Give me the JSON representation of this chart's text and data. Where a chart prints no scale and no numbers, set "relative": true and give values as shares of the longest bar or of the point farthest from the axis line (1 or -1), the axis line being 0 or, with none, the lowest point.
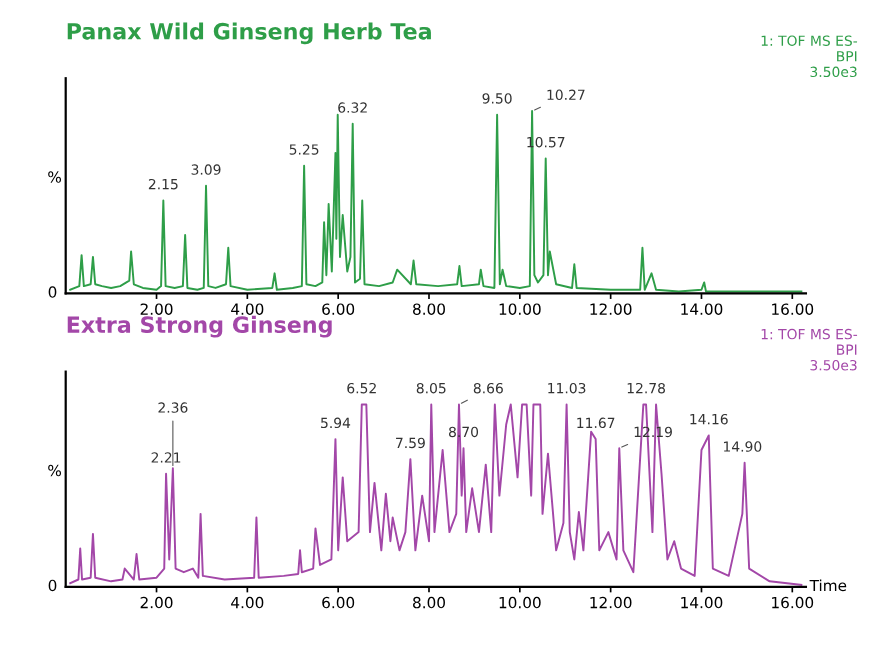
{
  "chart_data": [
    {
      "type": "line",
      "title": "Panax Wild Ginseng Herb Tea",
      "ylabel": "%",
      "relative": true,
      "xlim": [
        0,
        16.3
      ],
      "xticks": [
        {
          "value": 2,
          "label": "2.00"
        },
        {
          "value": 4,
          "label": "4.00"
        },
        {
          "value": 6,
          "label": "6.00"
        },
        {
          "value": 8,
          "label": "8.00"
        },
        {
          "value": 10,
          "label": "10.00"
        },
        {
          "value": 12,
          "label": "12.00"
        },
        {
          "value": 14,
          "label": "14.00"
        },
        {
          "value": 16,
          "label": "16.00"
        }
      ],
      "series": [
        {
          "color": "#2e9e48",
          "x": [
            0.1,
            0.3,
            0.35,
            0.4,
            0.55,
            0.6,
            0.65,
            0.8,
            1.0,
            1.2,
            1.4,
            1.44,
            1.5,
            1.7,
            2.0,
            2.1,
            2.15,
            2.2,
            2.4,
            2.58,
            2.63,
            2.68,
            2.9,
            3.04,
            3.09,
            3.14,
            3.3,
            3.53,
            3.58,
            3.63,
            4.0,
            4.55,
            4.6,
            4.65,
            5.0,
            5.2,
            5.25,
            5.3,
            5.5,
            5.65,
            5.69,
            5.74,
            5.79,
            5.86,
            5.94,
            5.96,
            5.99,
            6.04,
            6.1,
            6.2,
            6.27,
            6.32,
            6.37,
            6.48,
            6.53,
            6.58,
            6.9,
            7.2,
            7.3,
            7.6,
            7.66,
            7.72,
            8.2,
            8.62,
            8.67,
            8.72,
            9.1,
            9.14,
            9.2,
            9.44,
            9.5,
            9.56,
            9.62,
            9.7,
            10.0,
            10.22,
            10.27,
            10.32,
            10.4,
            10.52,
            10.57,
            10.62,
            10.66,
            10.8,
            11.15,
            11.2,
            11.25,
            12.0,
            12.65,
            12.7,
            12.75,
            12.9,
            13.0,
            13.5,
            14.0,
            14.06,
            14.1,
            15.0,
            16.2
          ],
          "values": [
            0.02,
            0.04,
            0.21,
            0.04,
            0.05,
            0.2,
            0.05,
            0.04,
            0.03,
            0.04,
            0.07,
            0.23,
            0.05,
            0.03,
            0.02,
            0.04,
            0.51,
            0.04,
            0.03,
            0.04,
            0.32,
            0.03,
            0.02,
            0.03,
            0.59,
            0.04,
            0.03,
            0.05,
            0.25,
            0.04,
            0.02,
            0.03,
            0.11,
            0.02,
            0.03,
            0.04,
            0.7,
            0.05,
            0.04,
            0.06,
            0.39,
            0.1,
            0.49,
            0.12,
            0.77,
            0.3,
            0.98,
            0.2,
            0.43,
            0.12,
            0.2,
            0.93,
            0.06,
            0.08,
            0.51,
            0.05,
            0.04,
            0.06,
            0.13,
            0.05,
            0.18,
            0.05,
            0.04,
            0.05,
            0.15,
            0.04,
            0.05,
            0.13,
            0.04,
            0.03,
            0.98,
            0.05,
            0.13,
            0.04,
            0.03,
            0.04,
            1.0,
            0.1,
            0.06,
            0.1,
            0.74,
            0.1,
            0.23,
            0.05,
            0.03,
            0.16,
            0.03,
            0.02,
            0.02,
            0.25,
            0.02,
            0.11,
            0.02,
            0.01,
            0.02,
            0.06,
            0.01,
            0.01,
            0.01
          ]
        }
      ],
      "annotations": [
        "1: TOF MS ES-\nBPI\n3.50e3",
        "0",
        {
          "text": "2.15",
          "x": 2.15,
          "y": 0.51
        },
        {
          "text": "3.09",
          "x": 3.09,
          "y": 0.59
        },
        {
          "text": "5.25",
          "x": 5.25,
          "y": 0.7
        },
        {
          "text": "6.32",
          "x": 6.32,
          "y": 0.93
        },
        {
          "text": "9.50",
          "x": 9.5,
          "y": 0.98
        },
        {
          "text": "10.27",
          "x": 10.27,
          "y": 1.0
        },
        {
          "text": "10.57",
          "x": 10.57,
          "y": 0.74
        }
      ]
    },
    {
      "type": "line",
      "title": "Extra Strong Ginseng",
      "ylabel": "%",
      "xlabel": "Time",
      "relative": true,
      "xlim": [
        0,
        16.3
      ],
      "xticks": [
        {
          "value": 2,
          "label": "2.00"
        },
        {
          "value": 4,
          "label": "4.00"
        },
        {
          "value": 6,
          "label": "6.00"
        },
        {
          "value": 8,
          "label": "8.00"
        },
        {
          "value": 10,
          "label": "10.00"
        },
        {
          "value": 12,
          "label": "12.00"
        },
        {
          "value": 14,
          "label": "14.00"
        },
        {
          "value": 16,
          "label": "16.00"
        }
      ],
      "series": [
        {
          "color": "#a347a8",
          "x": [
            0.1,
            0.28,
            0.32,
            0.36,
            0.55,
            0.6,
            0.65,
            1.0,
            1.25,
            1.3,
            1.5,
            1.56,
            1.62,
            2.0,
            2.17,
            2.21,
            2.28,
            2.36,
            2.42,
            2.6,
            2.8,
            2.92,
            2.97,
            3.02,
            3.5,
            4.15,
            4.2,
            4.25,
            4.8,
            5.12,
            5.16,
            5.2,
            5.45,
            5.5,
            5.6,
            5.85,
            5.94,
            6.0,
            6.1,
            6.2,
            6.45,
            6.52,
            6.62,
            6.7,
            6.8,
            6.95,
            7.05,
            7.15,
            7.2,
            7.35,
            7.48,
            7.59,
            7.7,
            7.85,
            8.0,
            8.05,
            8.12,
            8.3,
            8.45,
            8.6,
            8.66,
            8.72,
            8.76,
            8.82,
            8.95,
            9.1,
            9.25,
            9.37,
            9.45,
            9.55,
            9.7,
            9.8,
            9.95,
            10.05,
            10.15,
            10.25,
            10.3,
            10.45,
            10.5,
            10.62,
            10.8,
            10.96,
            11.03,
            11.1,
            11.2,
            11.3,
            11.4,
            11.57,
            11.67,
            11.75,
            11.95,
            12.13,
            12.19,
            12.28,
            12.5,
            12.72,
            12.78,
            12.92,
            13.0,
            13.12,
            13.25,
            13.4,
            13.55,
            13.85,
            14.0,
            14.16,
            14.25,
            14.6,
            14.9,
            14.95,
            15.05,
            15.5,
            16.2
          ],
          "values": [
            0.02,
            0.04,
            0.21,
            0.04,
            0.05,
            0.29,
            0.05,
            0.03,
            0.04,
            0.1,
            0.04,
            0.18,
            0.04,
            0.05,
            0.1,
            0.62,
            0.15,
            0.65,
            0.1,
            0.08,
            0.1,
            0.05,
            0.4,
            0.06,
            0.04,
            0.05,
            0.38,
            0.05,
            0.06,
            0.07,
            0.2,
            0.08,
            0.1,
            0.32,
            0.12,
            0.15,
            0.81,
            0.2,
            0.6,
            0.25,
            0.3,
            1.0,
            1.0,
            0.3,
            0.57,
            0.2,
            0.51,
            0.25,
            0.38,
            0.2,
            0.3,
            0.7,
            0.2,
            0.5,
            0.25,
            1.0,
            0.3,
            0.75,
            0.3,
            0.4,
            1.0,
            0.5,
            0.76,
            0.3,
            0.54,
            0.3,
            0.67,
            0.3,
            1.0,
            0.5,
            0.89,
            1.0,
            0.6,
            1.0,
            1.0,
            0.5,
            1.0,
            1.0,
            0.4,
            0.73,
            0.2,
            0.35,
            1.0,
            0.3,
            0.15,
            0.41,
            0.2,
            0.85,
            0.81,
            0.2,
            0.3,
            0.15,
            0.76,
            0.2,
            0.08,
            1.0,
            1.0,
            0.3,
            1.0,
            0.62,
            0.15,
            0.25,
            0.1,
            0.06,
            0.75,
            0.83,
            0.1,
            0.06,
            0.4,
            0.68,
            0.1,
            0.03,
            0.01
          ]
        }
      ],
      "annotations": [
        "1: TOF MS ES-\nBPI\n3.50e3",
        "0",
        {
          "text": "2.21",
          "x": 2.21,
          "y": 0.62
        },
        {
          "text": "2.36",
          "x": 2.36,
          "y": 0.65
        },
        {
          "text": "5.94",
          "x": 5.94,
          "y": 0.81
        },
        {
          "text": "6.52",
          "x": 6.52,
          "y": 1.0
        },
        {
          "text": "7.59",
          "x": 7.59,
          "y": 0.7
        },
        {
          "text": "8.05",
          "x": 8.05,
          "y": 1.0
        },
        {
          "text": "8.66",
          "x": 8.66,
          "y": 1.0
        },
        {
          "text": "8.70",
          "x": 8.76,
          "y": 0.76
        },
        {
          "text": "11.03",
          "x": 11.03,
          "y": 1.0
        },
        {
          "text": "11.67",
          "x": 11.67,
          "y": 0.81
        },
        {
          "text": "12.19",
          "x": 12.19,
          "y": 0.76
        },
        {
          "text": "12.78",
          "x": 12.78,
          "y": 1.0
        },
        {
          "text": "14.16",
          "x": 14.16,
          "y": 0.83
        },
        {
          "text": "14.90",
          "x": 14.9,
          "y": 0.68
        }
      ]
    }
  ]
}
